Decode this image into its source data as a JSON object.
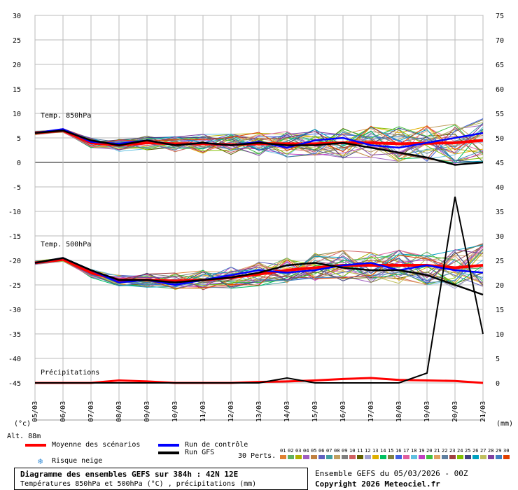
{
  "chart_data": {
    "type": "line",
    "left_axis_ticks": [
      "30",
      "25",
      "20",
      "15",
      "10",
      "5",
      "0",
      "-5",
      "-10",
      "-15",
      "-20",
      "-25",
      "-30",
      "-35",
      "-40",
      "-45"
    ],
    "right_axis_ticks": [
      "75",
      "70",
      "65",
      "60",
      "55",
      "50",
      "45",
      "40",
      "35",
      "30",
      "25",
      "20",
      "15",
      "10",
      "5",
      "0"
    ],
    "left_axis_unit": "(°c)",
    "right_axis_unit": "(mm)",
    "x_tick_labels": [
      "05/03",
      "06/03",
      "07/03",
      "08/03",
      "09/03",
      "10/03",
      "11/03",
      "12/03",
      "13/03",
      "14/03",
      "15/03",
      "16/03",
      "17/03",
      "18/03",
      "19/03",
      "20/03",
      "21/03"
    ],
    "altitude_label": "Alt. 88m",
    "panels": {
      "t850": {
        "label": "Temp. 850hPa"
      },
      "t500": {
        "label": "Temp. 500hPa"
      },
      "precip": {
        "label": "Précipitations"
      }
    },
    "series": [
      {
        "name": "Moyenne des scénarios",
        "color": "#ff0000",
        "t850": [
          6.0,
          6.5,
          4.0,
          3.5,
          4.0,
          3.8,
          3.8,
          3.6,
          3.8,
          3.8,
          3.8,
          4.0,
          4.0,
          3.8,
          3.9,
          4.0,
          4.5
        ],
        "t500": [
          -20.5,
          -19.8,
          -22.5,
          -24.0,
          -24.0,
          -24.2,
          -24.0,
          -23.5,
          -22.8,
          -22.0,
          -21.5,
          -21.0,
          -21.0,
          -21.0,
          -21.0,
          -21.5,
          -21.0
        ],
        "precip_mm": [
          0,
          0,
          0,
          0.5,
          0.3,
          0,
          0,
          0,
          0.2,
          0.3,
          0.5,
          0.8,
          1.0,
          0.6,
          0.5,
          0.4,
          0
        ]
      },
      {
        "name": "Run de contrôle",
        "color": "#0000ff",
        "t850": [
          6.0,
          6.8,
          4.2,
          3.8,
          4.5,
          3.5,
          4.0,
          3.5,
          4.2,
          3.0,
          4.5,
          5.0,
          3.5,
          3.0,
          4.0,
          5.0,
          6.0
        ],
        "t500": [
          -20.5,
          -19.5,
          -22.0,
          -24.5,
          -24.0,
          -25.0,
          -24.0,
          -23.0,
          -22.0,
          -22.5,
          -22.0,
          -21.0,
          -20.5,
          -22.0,
          -21.0,
          -22.0,
          -22.5
        ]
      },
      {
        "name": "Run GFS",
        "color": "#000000",
        "t850": [
          6.0,
          6.5,
          4.5,
          3.5,
          4.5,
          3.5,
          4.0,
          3.5,
          4.0,
          3.5,
          3.5,
          4.0,
          3.0,
          2.0,
          1.0,
          -0.5,
          0.0
        ],
        "t500": [
          -20.5,
          -19.5,
          -22.0,
          -24.0,
          -24.0,
          -24.5,
          -24.0,
          -23.5,
          -22.5,
          -21.0,
          -20.5,
          -21.5,
          -22.0,
          -22.0,
          -23.0,
          -25.0,
          -27.0
        ],
        "precip_mm": [
          0,
          0,
          0,
          0,
          0,
          0,
          0,
          0,
          0,
          1,
          0,
          0,
          0,
          0,
          2,
          38,
          10
        ]
      }
    ],
    "legend": {
      "mean": "Moyenne des scénarios",
      "control": "Run de contrôle",
      "gfs": "Run GFS",
      "snow": "Risque neige",
      "perts": "30 Perts.",
      "pert_numbers": [
        "01",
        "02",
        "03",
        "04",
        "05",
        "06",
        "07",
        "08",
        "09",
        "10",
        "11",
        "12",
        "13",
        "14",
        "15",
        "16",
        "17",
        "18",
        "19",
        "20",
        "21",
        "22",
        "23",
        "24",
        "25",
        "26",
        "27",
        "28",
        "29",
        "30"
      ],
      "pert_colors": [
        "#e08030",
        "#60b060",
        "#b0b000",
        "#a060c0",
        "#c08040",
        "#6060c0",
        "#40a0a0",
        "#c0a060",
        "#808080",
        "#d06060",
        "#606000",
        "#a0a0d0",
        "#e0b000",
        "#00c060",
        "#808040",
        "#4060e0",
        "#e060a0",
        "#60c0e0",
        "#c040c0",
        "#40c040",
        "#e0a060",
        "#6080a0",
        "#a04040",
        "#80c000",
        "#404080",
        "#00a0c0",
        "#c0c060",
        "#8040a0",
        "#4080c0",
        "#e04000"
      ]
    },
    "title": "Diagramme des ensembles GEFS sur 384h : 42N 12E",
    "subtitle": "Températures 850hPa et 500hPa (°C) , précipitations (mm)",
    "run_info": "Ensemble GEFS du 05/03/2026 - 00Z",
    "copyright": "Copyright 2026 Meteociel.fr"
  }
}
